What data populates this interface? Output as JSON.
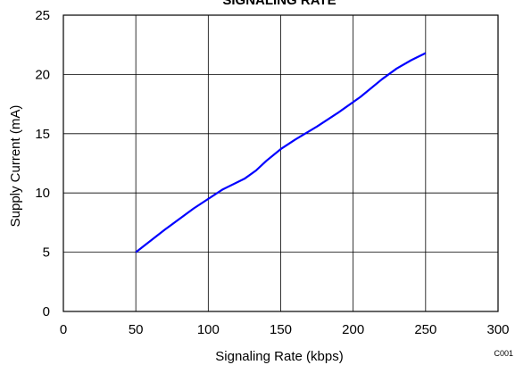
{
  "chart_data": {
    "type": "line",
    "title": "SIGNALING RATE",
    "xlabel": "Signaling Rate (kbps)",
    "ylabel": "Supply Current (mA)",
    "code": "C001",
    "xlim": [
      0,
      300
    ],
    "ylim": [
      0,
      25
    ],
    "xticks": [
      0,
      50,
      100,
      150,
      200,
      250,
      300
    ],
    "yticks": [
      0,
      5,
      10,
      15,
      20,
      25
    ],
    "xtick_labels": [
      "0",
      "50",
      "100",
      "150",
      "200",
      "250",
      "300"
    ],
    "ytick_labels": [
      "0",
      "5",
      "10",
      "15",
      "20",
      "25"
    ],
    "grid": true,
    "colors": {
      "line": "#0000ff",
      "grid": "#000000",
      "axes": "#000000"
    },
    "series": [
      {
        "x": [
          50,
          70,
          90,
          110,
          125,
          133,
          140,
          150,
          160,
          175,
          190,
          205,
          220,
          230,
          240,
          250
        ],
        "y": [
          5.0,
          6.9,
          8.7,
          10.3,
          11.2,
          11.9,
          12.7,
          13.7,
          14.5,
          15.6,
          16.8,
          18.1,
          19.6,
          20.5,
          21.2,
          21.8
        ]
      }
    ]
  }
}
